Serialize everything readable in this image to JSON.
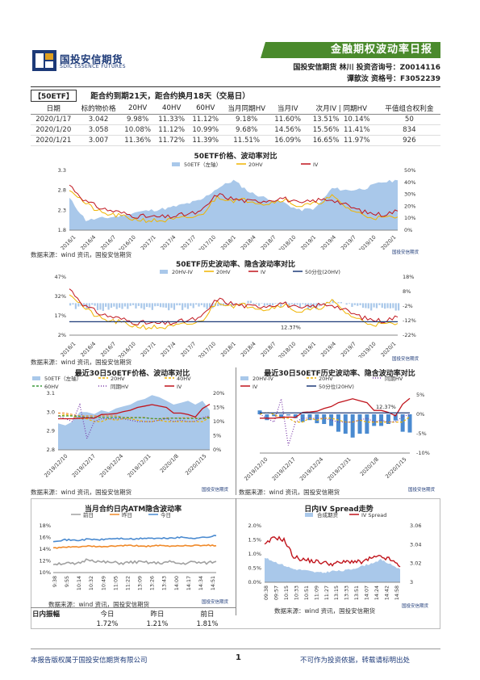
{
  "header": {
    "logo_cn": "国投安信期货",
    "logo_en": "SDIC ESSENCE FUTURES",
    "banner_title": "金融期权波动率日报",
    "author_line1": "国投安信期货 林川 投资咨询号：Z0014116",
    "author_line2": "谭歆汝   资格号：F3052239"
  },
  "note": {
    "tag": "【50ETF】",
    "text": "距合约到期21天，距合约换月18天（交易日）"
  },
  "table": {
    "headers": [
      "日期",
      "标的物价格",
      "20HV",
      "40HV",
      "60HV",
      "当月同期HV",
      "当月IV",
      "次月IV",
      "同期HV",
      "平值组合权利金"
    ],
    "rows": [
      [
        "2020/1/17",
        "3.042",
        "9.98%",
        "11.33%",
        "11.12%",
        "9.18%",
        "11.60%",
        "13.51%",
        "10.14%",
        "50"
      ],
      [
        "2020/1/20",
        "3.058",
        "10.08%",
        "11.12%",
        "10.99%",
        "9.68%",
        "14.56%",
        "15.56%",
        "11.41%",
        "834"
      ],
      [
        "2020/1/21",
        "3.007",
        "11.36%",
        "11.72%",
        "11.39%",
        "11.51%",
        "16.09%",
        "16.65%",
        "11.97%",
        "926"
      ]
    ]
  },
  "source_text": "数据来源：wind 资讯，国投安信期货",
  "watermark": "国投安信期货",
  "colors": {
    "etf_area": "#a9c8ea",
    "hv20": "#f0b400",
    "iv": "#c0141c",
    "hv40": "#f0b400",
    "hv60": "#3a9a3a",
    "same_hv": "#7a3aa8",
    "pct50": "#1d3a78",
    "gray": "#a0a0a0",
    "orange": "#f08a2a",
    "blue": "#4a8ad0",
    "banner_green": "#4a8a2c"
  },
  "amplitude": {
    "label": "日内振幅",
    "cols": [
      "今日",
      "昨日",
      "前日"
    ],
    "values": [
      "1.72%",
      "1.21%",
      "1.81%"
    ]
  },
  "chart_data": [
    {
      "id": "c1",
      "type": "area",
      "title": "50ETF价格、波动率对比",
      "legend": [
        "50ETF（左轴）",
        "20HV",
        "IV"
      ],
      "ylim_left": [
        1.8,
        3.3
      ],
      "yticks_left": [
        "3.3",
        "2.8",
        "2.3",
        "1.8"
      ],
      "ylim_right": [
        0,
        50
      ],
      "yticks_right": [
        "50%",
        "40%",
        "30%",
        "20%",
        "10%",
        "0%"
      ],
      "xticks": [
        "2016/1",
        "2016/4",
        "2016/7",
        "2016/10",
        "2017/1",
        "2017/4",
        "2017/7",
        "2017/10",
        "2018/1",
        "2018/4",
        "2018/7",
        "2018/10",
        "2019/1",
        "2019/4",
        "2019/7",
        "2019/10",
        "2020/1"
      ],
      "etf": [
        2.6,
        2.05,
        2.1,
        2.15,
        2.25,
        2.3,
        2.35,
        2.45,
        2.55,
        2.85,
        3.05,
        2.75,
        2.6,
        2.5,
        2.3,
        2.35,
        2.85,
        2.8,
        2.85,
        3.0,
        3.05
      ],
      "hv20": [
        35,
        22,
        14,
        12,
        9,
        8,
        8,
        10,
        12,
        28,
        25,
        25,
        22,
        26,
        20,
        22,
        28,
        18,
        12,
        10,
        11
      ],
      "iv": [
        38,
        24,
        18,
        15,
        12,
        11,
        11,
        13,
        15,
        30,
        26,
        24,
        25,
        27,
        22,
        25,
        26,
        20,
        15,
        13,
        16
      ]
    },
    {
      "id": "c2",
      "type": "line",
      "title": "50ETF历史波动率、隐含波动率对比",
      "legend": [
        "20HV-IV",
        "20HV",
        "IV",
        "50分位(20HV)"
      ],
      "ylim_left": [
        2,
        47
      ],
      "yticks_left": [
        "47%",
        "32%",
        "17%",
        "2%"
      ],
      "ylim_right": [
        -22,
        18
      ],
      "yticks_right": [
        "18%",
        "8%",
        "-2%",
        "-12%",
        "-22%"
      ],
      "xticks": [
        "2016/1",
        "2016/4",
        "2016/7",
        "2016/10",
        "2017/1",
        "2017/4",
        "2017/7",
        "2017/10",
        "2018/1",
        "2018/4",
        "2018/7",
        "2018/10",
        "2019/1",
        "2019/4",
        "2019/7",
        "2019/10",
        "2020/1"
      ],
      "pct50_label": "12.37%",
      "pct50": 12.37,
      "hv20": [
        35,
        22,
        14,
        12,
        9,
        8,
        8,
        10,
        12,
        28,
        25,
        25,
        22,
        26,
        20,
        22,
        28,
        18,
        12,
        10,
        11
      ],
      "iv": [
        38,
        24,
        18,
        15,
        12,
        11,
        11,
        13,
        15,
        30,
        26,
        24,
        25,
        27,
        22,
        25,
        26,
        20,
        15,
        13,
        16
      ],
      "spread": [
        -3,
        -2,
        -4,
        -3,
        -3,
        -3,
        -3,
        -3,
        -3,
        -2,
        -1,
        1,
        -3,
        -1,
        -2,
        -3,
        2,
        -2,
        -3,
        -3,
        -5
      ]
    },
    {
      "id": "c3",
      "type": "area",
      "title": "最近30日50ETF价格、波动率对比",
      "legend": [
        "50ETF（左轴）",
        "20HV",
        "40HV",
        "60HV",
        "同期HV",
        "IV"
      ],
      "ylim_left": [
        2.8,
        3.1
      ],
      "yticks_left": [
        "3.1",
        "3.0",
        "2.9",
        "2.8"
      ],
      "ylim_right": [
        0,
        20
      ],
      "yticks_right": [
        "20%",
        "15%",
        "10%",
        "5%",
        "0%"
      ],
      "xticks": [
        "2019/12/10",
        "2019/12/17",
        "2019/12/24",
        "2019/12/31",
        "2020/1/8",
        "2020/1/15"
      ],
      "etf": [
        2.94,
        2.93,
        2.95,
        3.0,
        3.0,
        2.99,
        3.01,
        3.0,
        3.02,
        3.03,
        3.04,
        3.06,
        3.07,
        3.09,
        3.08,
        3.06,
        3.04,
        3.05,
        3.06,
        3.04,
        3.06,
        3.01
      ],
      "hv20": [
        12,
        12.5,
        12,
        11,
        11,
        10,
        10,
        11,
        10.5,
        11,
        11,
        10.5,
        10,
        10,
        10.5,
        10,
        10,
        10,
        10,
        10,
        10,
        11.4
      ],
      "hv40": [
        13,
        13,
        12.5,
        12,
        12,
        12,
        12,
        12,
        12,
        11.5,
        11.5,
        11.5,
        11.5,
        11,
        11,
        11.3,
        11.2,
        11.3,
        11.3,
        11.3,
        11.1,
        11.7
      ],
      "hv60": [
        12,
        12,
        12,
        11.8,
        11.5,
        11.5,
        11.5,
        11.4,
        11.5,
        11.4,
        11.3,
        11.4,
        11.3,
        11.1,
        11,
        11.1,
        11.2,
        11.1,
        11.1,
        11.1,
        11,
        11.4
      ],
      "same_hv": [
        12,
        11,
        10,
        16,
        4,
        10,
        11,
        11,
        11,
        11,
        10.5,
        10,
        10,
        10,
        10.5,
        11,
        10,
        10.5,
        10,
        10.1,
        11.4,
        12
      ],
      "iv": [
        11,
        11,
        11,
        11.2,
        11.3,
        11.2,
        12.5,
        12.6,
        12.8,
        13.5,
        14,
        15,
        15.5,
        16,
        15.5,
        15,
        13,
        13,
        12.5,
        11.6,
        14.6,
        16.1
      ]
    },
    {
      "id": "c4",
      "type": "bar",
      "title": "最近30日50ETF历史波动率、隐含波动率对比",
      "legend": [
        "20HV-IV",
        "20HV",
        "同期HV",
        "IV",
        "50分位(20HV)"
      ],
      "ylim_left": [
        2,
        17
      ],
      "ylim_right": [
        -10,
        5
      ],
      "yticks_right": [
        "5%",
        "0%",
        "-5%",
        "-10%"
      ],
      "xticks": [
        "2019/12/10",
        "2019/12/17",
        "2019/12/24",
        "2019/12/31",
        "2020/1/8",
        "2020/1/15"
      ],
      "pct50_label": "12.37%",
      "pct50": 12.37,
      "spread": [
        1,
        -1.5,
        -0.5,
        -1,
        -0.3,
        -1,
        -2,
        -1.5,
        -2.3,
        -2.5,
        -3,
        -4.5,
        -5,
        -6,
        -5,
        -5,
        -3,
        -3,
        -2.5,
        -1.6,
        -4.5,
        -4.7
      ],
      "hv20": [
        12,
        12.5,
        12,
        11,
        11,
        10,
        10,
        11,
        10.5,
        11,
        11,
        10.5,
        10,
        10,
        10.5,
        10,
        10,
        10,
        10,
        10,
        10,
        11.4
      ],
      "same_hv": [
        12,
        11,
        10,
        16,
        4,
        10,
        11,
        11,
        11,
        11,
        10.5,
        10,
        10,
        10,
        10.5,
        11,
        10,
        10.5,
        10,
        10.1,
        11.4,
        12
      ],
      "iv": [
        11,
        11,
        11,
        11.2,
        11.3,
        11.2,
        12.5,
        12.6,
        12.8,
        13.5,
        14,
        15,
        15.5,
        16,
        15.5,
        15,
        13,
        13,
        12.5,
        11.6,
        14.6,
        16.1
      ]
    },
    {
      "id": "c5",
      "type": "line",
      "title": "当月合约日内ATM隐含波动率",
      "legend": [
        "前日",
        "昨日",
        "今日"
      ],
      "ylim": [
        10,
        18
      ],
      "yticks": [
        "18%",
        "16%",
        "14%",
        "12%",
        "10%"
      ],
      "xticks": [
        "9:38",
        "9:55",
        "10:14",
        "10:32",
        "10:49",
        "11:05",
        "11:22",
        "13:09",
        "13:26",
        "13:43",
        "14:00",
        "14:17",
        "14:34",
        "14:51"
      ],
      "prev": [
        11.5,
        11.6,
        11.4,
        12.3,
        11.8,
        11.7,
        11.6,
        11.8,
        11.7,
        11.6,
        11.8,
        11.5,
        11.8,
        11.6,
        11.9
      ],
      "yest": [
        14.2,
        14.3,
        14.4,
        14.5,
        14.4,
        14.5,
        14.6,
        14.6,
        14.5,
        14.6,
        14.5,
        14.6,
        14.6,
        14.7,
        14.6
      ],
      "today": [
        15.4,
        15.6,
        15.5,
        15.7,
        15.6,
        15.8,
        15.8,
        15.7,
        15.9,
        15.8,
        15.9,
        16.0,
        15.9,
        16.0,
        16.3
      ]
    },
    {
      "id": "c6",
      "type": "area",
      "title": "日内IV Spread走势",
      "legend": [
        "合成期货",
        "IV Spread"
      ],
      "ylim_left": [
        0,
        2.0
      ],
      "yticks_left": [
        "2.0%",
        "1.5%",
        "1.0%",
        "0.5%",
        "0.0%"
      ],
      "ylim_right": [
        3,
        3.06
      ],
      "yticks_right": [
        "3.06",
        "3.04",
        "3.02",
        "3"
      ],
      "xticks": [
        "09:38",
        "09:57",
        "10:15",
        "10:33",
        "10:51",
        "11:09",
        "11:27",
        "13:15",
        "13:33",
        "13:51",
        "14:07",
        "14:24",
        "14:42",
        "14:58"
      ],
      "future": [
        3.026,
        3.022,
        3.018,
        3.014,
        3.013,
        3.011,
        3.01,
        3.012,
        3.012,
        3.014,
        3.017,
        3.02,
        3.024,
        3.019,
        3.014
      ],
      "spread": [
        1.3,
        1.6,
        1.5,
        0.9,
        0.8,
        0.75,
        0.7,
        0.65,
        0.7,
        0.75,
        0.7,
        0.85,
        0.9,
        0.8,
        0.55
      ]
    }
  ]
}
